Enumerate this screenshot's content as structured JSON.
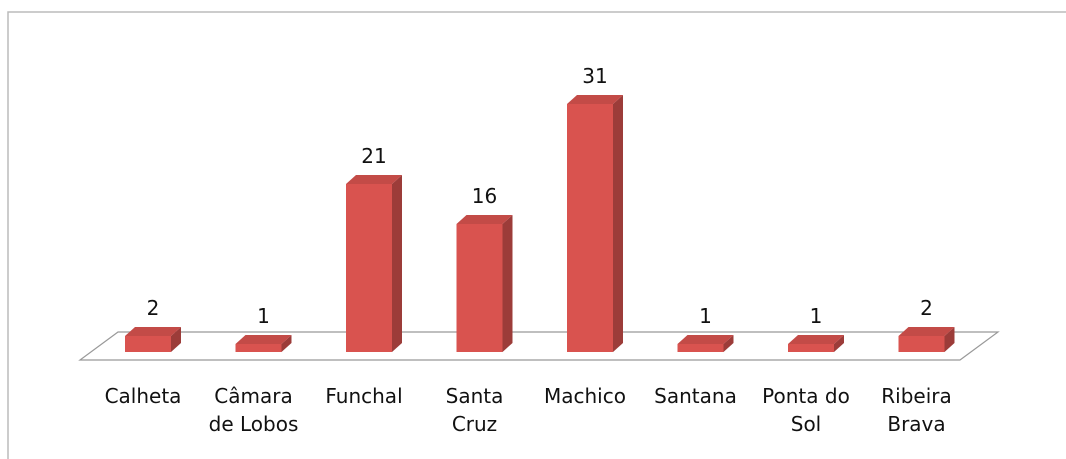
{
  "chart_data": {
    "type": "bar",
    "categories": [
      "Calheta",
      "Câmara de Lobos",
      "Funchal",
      "Santa Cruz",
      "Machico",
      "Santana",
      "Ponta do Sol",
      "Ribeira Brava"
    ],
    "values": [
      2,
      1,
      21,
      16,
      31,
      1,
      1,
      2
    ],
    "color": "#d9534f"
  }
}
